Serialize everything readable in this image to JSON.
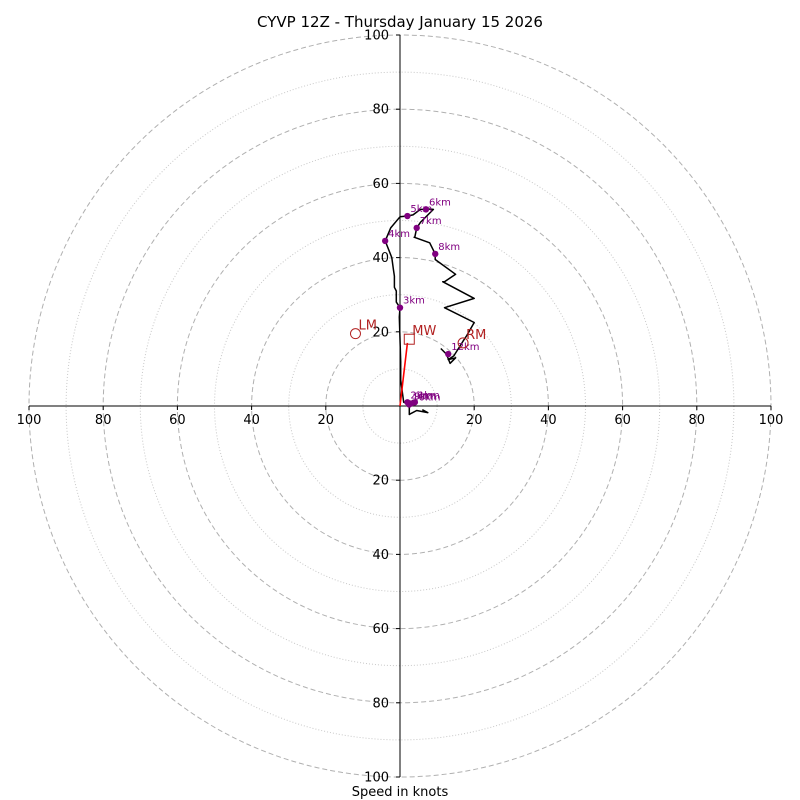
{
  "chart_data": {
    "type": "hodograph",
    "title": "CYVP 12Z - Thursday January 15 2026",
    "xlabel": "Speed in knots",
    "speed_max": 100,
    "ring_major": [
      20,
      40,
      60,
      80,
      100
    ],
    "ring_minor": [
      10,
      30,
      50,
      70,
      90
    ],
    "axis_tick_values": [
      20,
      40,
      60,
      80,
      100
    ],
    "axis_tick_labels": [
      "20",
      "40",
      "60",
      "80",
      "100"
    ],
    "colors": {
      "trace": "#000000",
      "markers": "#800080",
      "motion": "#b22222",
      "mean_wind_vector": "#ff0000",
      "grid": "#b0b0b0"
    },
    "hodograph_trace": [
      [
        6.0,
        -1.0
      ],
      [
        7.5,
        -1.8
      ],
      [
        4.5,
        -1.2
      ],
      [
        3.0,
        -2.0
      ],
      [
        2.5,
        -2.3
      ],
      [
        2.5,
        0.0
      ],
      [
        3.5,
        0.4
      ],
      [
        4.5,
        1.0
      ],
      [
        3.5,
        1.5
      ],
      [
        2.6,
        0.6
      ],
      [
        1.8,
        0.8
      ],
      [
        1.0,
        1.0
      ],
      [
        0.2,
        7.0
      ],
      [
        0.2,
        12.0
      ],
      [
        0.0,
        18.0
      ],
      [
        -0.2,
        24.0
      ],
      [
        0.0,
        26.5
      ],
      [
        -1.0,
        28.0
      ],
      [
        -1.0,
        31.0
      ],
      [
        -1.5,
        32.0
      ],
      [
        -1.5,
        35.0
      ],
      [
        -1.8,
        37.0
      ],
      [
        -2.2,
        40.0
      ],
      [
        -4.0,
        44.5
      ],
      [
        -2.5,
        48.0
      ],
      [
        0.0,
        51.0
      ],
      [
        2.0,
        51.2
      ],
      [
        3.5,
        51.5
      ],
      [
        5.5,
        53.0
      ],
      [
        7.0,
        53.0
      ],
      [
        7.5,
        53.1
      ],
      [
        9.0,
        53.0
      ],
      [
        5.5,
        49.5
      ],
      [
        4.5,
        48.0
      ],
      [
        4.0,
        45.5
      ],
      [
        3.8,
        45.5
      ],
      [
        8.0,
        44.0
      ],
      [
        9.5,
        41.0
      ],
      [
        9.5,
        39.5
      ],
      [
        15.0,
        35.5
      ],
      [
        12.0,
        33.5
      ],
      [
        11.5,
        33.5
      ],
      [
        20.0,
        29.0
      ],
      [
        12.0,
        26.5
      ],
      [
        20.0,
        22.5
      ],
      [
        18.0,
        19.0
      ],
      [
        17.0,
        17.5
      ],
      [
        14.5,
        13.5
      ],
      [
        13.0,
        12.5
      ],
      [
        15.0,
        13.0
      ],
      [
        13.5,
        11.5
      ],
      [
        12.5,
        14.0
      ],
      [
        11.0,
        15.5
      ]
    ],
    "height_markers": [
      {
        "label": "1km",
        "u": 4.0,
        "v": 1.0
      },
      {
        "label": "2km",
        "u": 2.0,
        "v": 1.0
      },
      {
        "label": "3km",
        "u": 0.0,
        "v": 26.5
      },
      {
        "label": "4km",
        "u": -4.0,
        "v": 44.5
      },
      {
        "label": "5km",
        "u": 2.0,
        "v": 51.2
      },
      {
        "label": "6km",
        "u": 7.0,
        "v": 53.0
      },
      {
        "label": "7km",
        "u": 4.5,
        "v": 48.0
      },
      {
        "label": "8km",
        "u": 9.5,
        "v": 41.0
      },
      {
        "label": "9km",
        "u": 3.0,
        "v": 0.7
      },
      {
        "label": "10km",
        "u": 2.5,
        "v": 0.4
      },
      {
        "label": "12km",
        "u": 13.0,
        "v": 14.0
      }
    ],
    "storm_motion": [
      {
        "name": "RM",
        "u": 17.0,
        "v": 17.0,
        "marker": "circle"
      },
      {
        "name": "LM",
        "u": -12.0,
        "v": 19.5,
        "marker": "circle"
      },
      {
        "name": "MW",
        "u": 2.5,
        "v": 18.0,
        "marker": "square"
      }
    ],
    "mean_wind_vector": {
      "u": 2.0,
      "v": 17.0
    }
  }
}
